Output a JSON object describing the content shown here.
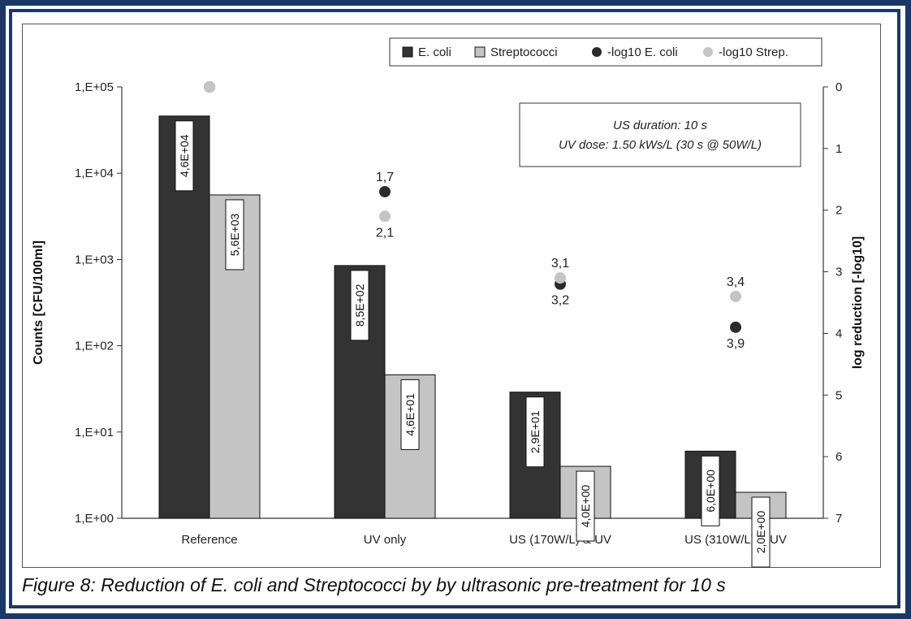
{
  "caption": "Figure 8: Reduction of E. coli and Streptococci by by ultrasonic pre-treatment for 10 s",
  "chart_data": {
    "type": "bar",
    "categories": [
      "Reference",
      "UV only",
      "US (170W/L) & UV",
      "US (310W/L) & UV"
    ],
    "series": [
      {
        "name": "E. coli",
        "axis": "left",
        "color": "#333333",
        "values": [
          46000,
          850,
          29,
          6.0
        ],
        "labels": [
          "4,6E+04",
          "8,5E+02",
          "2,9E+01",
          "6,0E+00"
        ]
      },
      {
        "name": "Streptococci",
        "axis": "left",
        "color": "#c4c4c4",
        "values": [
          5600,
          46,
          4.0,
          2.0
        ],
        "labels": [
          "5,6E+03",
          "4,6E+01",
          "4,0E+00",
          "2,0E+00"
        ]
      },
      {
        "name": "-log10 E. coli",
        "axis": "right",
        "type": "scatter",
        "color": "#2b2b2b",
        "values": [
          0,
          1.7,
          3.2,
          3.9
        ],
        "labels": [
          "",
          "1,7",
          "3,2",
          "3,9"
        ]
      },
      {
        "name": "-log10 Strep.",
        "axis": "right",
        "type": "scatter",
        "color": "#c4c4c4",
        "values": [
          0,
          2.1,
          3.1,
          3.4
        ],
        "labels": [
          "",
          "2,1",
          "3,1",
          "3,4"
        ]
      }
    ],
    "ylabel": "Counts [CFU/100ml]",
    "y_scale": "log",
    "ylim": [
      1,
      100000
    ],
    "y_ticks": [
      "1,E+00",
      "1,E+01",
      "1,E+02",
      "1,E+03",
      "1,E+04",
      "1,E+05"
    ],
    "y2label": "log reduction [-log10]",
    "y2lim": [
      0,
      7
    ],
    "y2_reversed": true,
    "y2_ticks": [
      "0",
      "1",
      "2",
      "3",
      "4",
      "5",
      "6",
      "7"
    ],
    "annotation": [
      "US duration: 10 s",
      "UV dose: 1.50 kWs/L (30 s @ 50W/L)"
    ],
    "legend_position": "top-right",
    "grid": false
  }
}
